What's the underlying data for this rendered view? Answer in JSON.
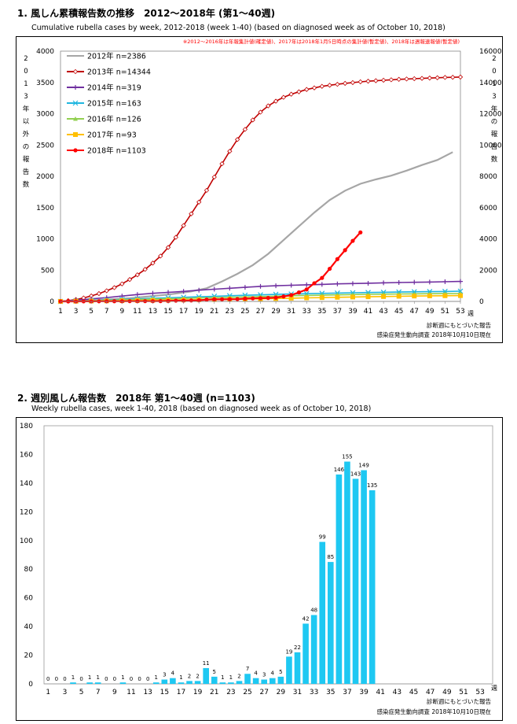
{
  "chart1": {
    "title": "1. 風しん累積報告数の推移　2012～2018年 (第1～40週)",
    "subtitle": "Cumulative rubella cases by week, 2012-2018 (week 1-40)  (based on diagnosed week as of October 10, 2018)",
    "note": "※2012～2016年は年報集計値(確定値)、2017年は2018年1月5日時点の集計値(暫定値)、2018年は週報速報値(暫定値)",
    "left_axis_label": [
      "2",
      "0",
      "1",
      "3",
      "年",
      "以",
      "外",
      "の",
      "報",
      "告",
      "数"
    ],
    "right_axis_label": [
      "2",
      "0",
      "1",
      "3",
      "年",
      "の",
      "報",
      "告",
      "数"
    ],
    "x_unit": "週",
    "footer1": "診断週にもとづいた報告",
    "footer2": "感染症発生動向調査 2018年10月10日現在"
  },
  "chart2": {
    "title": "2. 週別風しん報告数　2018年 第1～40週 (n=1103)",
    "subtitle": "Weekly rubella cases, week 1-40, 2018 (based on diagnosed week as of October 10, 2018)",
    "x_unit": "週",
    "footer1": "診断週にもとづいた報告",
    "footer2": "感染症発生動向調査 2018年10月10日現在"
  },
  "chart_data": [
    {
      "type": "line",
      "title": "1. 風しん累積報告数の推移　2012～2018年 (第1～40週)",
      "xlabel": "週",
      "x_ticks": [
        1,
        3,
        5,
        7,
        9,
        11,
        13,
        15,
        17,
        19,
        21,
        23,
        25,
        27,
        29,
        31,
        33,
        35,
        37,
        39,
        41,
        43,
        45,
        47,
        49,
        51,
        53
      ],
      "ylim": [
        0,
        4000
      ],
      "y_ticks": [
        0,
        500,
        1000,
        1500,
        2000,
        2500,
        3000,
        3500,
        4000
      ],
      "y2lim": [
        0,
        16000
      ],
      "y2_ticks": [
        0,
        2000,
        4000,
        6000,
        8000,
        10000,
        12000,
        14000,
        16000
      ],
      "legend_position": "top-left",
      "series": [
        {
          "name": "2012年 n=2386",
          "color": "#a6a6a6",
          "axis": "left",
          "marker": "none",
          "points": [
            [
              1,
              2
            ],
            [
              5,
              15
            ],
            [
              10,
              50
            ],
            [
              15,
              110
            ],
            [
              18,
              160
            ],
            [
              20,
              210
            ],
            [
              22,
              320
            ],
            [
              24,
              440
            ],
            [
              26,
              580
            ],
            [
              28,
              760
            ],
            [
              30,
              980
            ],
            [
              32,
              1200
            ],
            [
              34,
              1420
            ],
            [
              36,
              1620
            ],
            [
              38,
              1770
            ],
            [
              40,
              1880
            ],
            [
              42,
              1950
            ],
            [
              44,
              2010
            ],
            [
              46,
              2090
            ],
            [
              48,
              2180
            ],
            [
              50,
              2260
            ],
            [
              52,
              2386
            ]
          ]
        },
        {
          "name": "2013年 n=14344",
          "color": "#c00000",
          "axis": "right",
          "marker": "diamond",
          "points": [
            [
              1,
              0
            ],
            [
              2,
              50
            ],
            [
              3,
              120
            ],
            [
              4,
              220
            ],
            [
              5,
              350
            ],
            [
              6,
              500
            ],
            [
              7,
              680
            ],
            [
              8,
              880
            ],
            [
              9,
              1120
            ],
            [
              10,
              1400
            ],
            [
              11,
              1700
            ],
            [
              12,
              2050
            ],
            [
              13,
              2450
            ],
            [
              14,
              2900
            ],
            [
              15,
              3450
            ],
            [
              16,
              4100
            ],
            [
              17,
              4850
            ],
            [
              18,
              5600
            ],
            [
              19,
              6350
            ],
            [
              20,
              7100
            ],
            [
              21,
              7950
            ],
            [
              22,
              8800
            ],
            [
              23,
              9600
            ],
            [
              24,
              10350
            ],
            [
              25,
              11000
            ],
            [
              26,
              11600
            ],
            [
              27,
              12100
            ],
            [
              28,
              12500
            ],
            [
              29,
              12800
            ],
            [
              30,
              13050
            ],
            [
              31,
              13250
            ],
            [
              32,
              13400
            ],
            [
              33,
              13550
            ],
            [
              34,
              13650
            ],
            [
              35,
              13750
            ],
            [
              36,
              13820
            ],
            [
              37,
              13880
            ],
            [
              38,
              13940
            ],
            [
              39,
              13990
            ],
            [
              40,
              14040
            ],
            [
              41,
              14080
            ],
            [
              42,
              14110
            ],
            [
              43,
              14140
            ],
            [
              44,
              14170
            ],
            [
              45,
              14200
            ],
            [
              46,
              14220
            ],
            [
              47,
              14240
            ],
            [
              48,
              14260
            ],
            [
              49,
              14280
            ],
            [
              50,
              14300
            ],
            [
              51,
              14320
            ],
            [
              52,
              14330
            ],
            [
              53,
              14344
            ]
          ]
        },
        {
          "name": "2014年 n=319",
          "color": "#7030a0",
          "axis": "left",
          "marker": "plus",
          "points": [
            [
              1,
              0
            ],
            [
              3,
              20
            ],
            [
              5,
              40
            ],
            [
              7,
              60
            ],
            [
              9,
              85
            ],
            [
              11,
              110
            ],
            [
              13,
              130
            ],
            [
              15,
              145
            ],
            [
              17,
              160
            ],
            [
              19,
              180
            ],
            [
              21,
              195
            ],
            [
              23,
              210
            ],
            [
              25,
              225
            ],
            [
              27,
              240
            ],
            [
              29,
              250
            ],
            [
              31,
              258
            ],
            [
              33,
              265
            ],
            [
              35,
              272
            ],
            [
              37,
              280
            ],
            [
              39,
              285
            ],
            [
              41,
              290
            ],
            [
              43,
              297
            ],
            [
              45,
              302
            ],
            [
              47,
              306
            ],
            [
              49,
              310
            ],
            [
              51,
              315
            ],
            [
              53,
              319
            ]
          ]
        },
        {
          "name": "2015年 n=163",
          "color": "#1fb6e0",
          "axis": "left",
          "marker": "x",
          "points": [
            [
              1,
              0
            ],
            [
              3,
              8
            ],
            [
              5,
              16
            ],
            [
              7,
              24
            ],
            [
              9,
              32
            ],
            [
              11,
              40
            ],
            [
              13,
              50
            ],
            [
              15,
              58
            ],
            [
              17,
              66
            ],
            [
              19,
              74
            ],
            [
              21,
              82
            ],
            [
              23,
              90
            ],
            [
              25,
              98
            ],
            [
              27,
              105
            ],
            [
              29,
              112
            ],
            [
              31,
              118
            ],
            [
              33,
              123
            ],
            [
              35,
              128
            ],
            [
              37,
              133
            ],
            [
              39,
              138
            ],
            [
              41,
              142
            ],
            [
              43,
              146
            ],
            [
              45,
              150
            ],
            [
              47,
              153
            ],
            [
              49,
              156
            ],
            [
              51,
              159
            ],
            [
              53,
              163
            ]
          ]
        },
        {
          "name": "2016年 n=126",
          "color": "#92d050",
          "axis": "left",
          "marker": "triangle",
          "points": [
            [
              1,
              0
            ],
            [
              3,
              6
            ],
            [
              5,
              12
            ],
            [
              7,
              18
            ],
            [
              9,
              24
            ],
            [
              11,
              30
            ],
            [
              13,
              36
            ],
            [
              15,
              42
            ],
            [
              17,
              48
            ],
            [
              19,
              54
            ],
            [
              21,
              60
            ],
            [
              23,
              66
            ],
            [
              25,
              72
            ],
            [
              27,
              78
            ],
            [
              29,
              84
            ],
            [
              31,
              90
            ],
            [
              33,
              95
            ],
            [
              35,
              100
            ],
            [
              37,
              105
            ],
            [
              39,
              109
            ],
            [
              41,
              113
            ],
            [
              43,
              116
            ],
            [
              45,
              119
            ],
            [
              47,
              121
            ],
            [
              49,
              123
            ],
            [
              51,
              125
            ],
            [
              53,
              126
            ]
          ]
        },
        {
          "name": "2017年 n=93",
          "color": "#ffc000",
          "axis": "left",
          "marker": "square",
          "points": [
            [
              1,
              0
            ],
            [
              3,
              3
            ],
            [
              5,
              6
            ],
            [
              7,
              9
            ],
            [
              9,
              12
            ],
            [
              11,
              15
            ],
            [
              13,
              18
            ],
            [
              15,
              21
            ],
            [
              17,
              24
            ],
            [
              19,
              27
            ],
            [
              21,
              30
            ],
            [
              23,
              34
            ],
            [
              25,
              38
            ],
            [
              27,
              42
            ],
            [
              29,
              46
            ],
            [
              31,
              51
            ],
            [
              33,
              56
            ],
            [
              35,
              61
            ],
            [
              37,
              66
            ],
            [
              39,
              70
            ],
            [
              41,
              74
            ],
            [
              43,
              78
            ],
            [
              45,
              82
            ],
            [
              47,
              86
            ],
            [
              49,
              89
            ],
            [
              51,
              91
            ],
            [
              53,
              93
            ]
          ]
        },
        {
          "name": "2018年 n=1103",
          "color": "#ff0000",
          "axis": "left",
          "marker": "circle",
          "points": [
            [
              1,
              0
            ],
            [
              2,
              0
            ],
            [
              3,
              0
            ],
            [
              4,
              1
            ],
            [
              5,
              1
            ],
            [
              6,
              2
            ],
            [
              7,
              3
            ],
            [
              8,
              3
            ],
            [
              9,
              3
            ],
            [
              10,
              4
            ],
            [
              11,
              4
            ],
            [
              12,
              4
            ],
            [
              13,
              4
            ],
            [
              14,
              5
            ],
            [
              15,
              8
            ],
            [
              16,
              12
            ],
            [
              17,
              13
            ],
            [
              18,
              15
            ],
            [
              19,
              17
            ],
            [
              20,
              28
            ],
            [
              21,
              33
            ],
            [
              22,
              34
            ],
            [
              23,
              35
            ],
            [
              24,
              37
            ],
            [
              25,
              44
            ],
            [
              26,
              48
            ],
            [
              27,
              51
            ],
            [
              28,
              55
            ],
            [
              29,
              60
            ],
            [
              30,
              79
            ],
            [
              31,
              101
            ],
            [
              32,
              143
            ],
            [
              33,
              191
            ],
            [
              34,
              290
            ],
            [
              35,
              375
            ],
            [
              36,
              521
            ],
            [
              37,
              676
            ],
            [
              38,
              819
            ],
            [
              39,
              968
            ],
            [
              40,
              1103
            ]
          ]
        }
      ]
    },
    {
      "type": "bar",
      "title": "2. 週別風しん報告数　2018年 第1～40週 (n=1103)",
      "xlabel": "週",
      "x": [
        1,
        2,
        3,
        4,
        5,
        6,
        7,
        8,
        9,
        10,
        11,
        12,
        13,
        14,
        15,
        16,
        17,
        18,
        19,
        20,
        21,
        22,
        23,
        24,
        25,
        26,
        27,
        28,
        29,
        30,
        31,
        32,
        33,
        34,
        35,
        36,
        37,
        38,
        39,
        40
      ],
      "values": [
        0,
        0,
        0,
        1,
        0,
        1,
        1,
        0,
        0,
        1,
        0,
        0,
        0,
        1,
        3,
        4,
        1,
        2,
        2,
        11,
        5,
        1,
        1,
        2,
        7,
        4,
        3,
        4,
        5,
        19,
        22,
        42,
        48,
        99,
        85,
        146,
        155,
        143,
        149,
        135
      ],
      "x_ticks": [
        1,
        3,
        5,
        7,
        9,
        11,
        13,
        15,
        17,
        19,
        21,
        23,
        25,
        27,
        29,
        31,
        33,
        35,
        37,
        39,
        41,
        43,
        45,
        47,
        49,
        51,
        53
      ],
      "ylim": [
        0,
        180
      ],
      "y_ticks": [
        0,
        20,
        40,
        60,
        80,
        100,
        120,
        140,
        160,
        180
      ],
      "color": "#1ec8f2"
    }
  ]
}
